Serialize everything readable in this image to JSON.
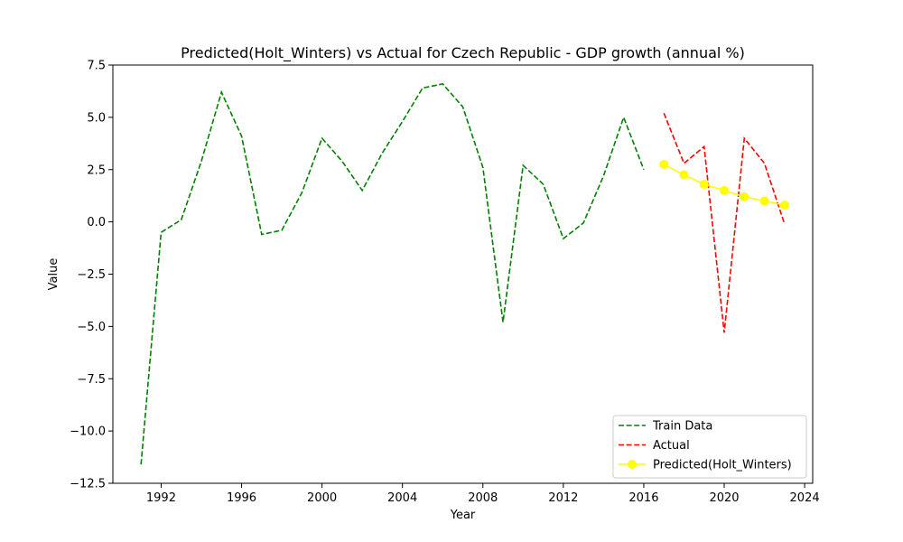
{
  "chart_data": {
    "type": "line",
    "title": "Predicted(Holt_Winters) vs Actual for Czech Republic - GDP growth (annual %)",
    "xlabel": "Year",
    "ylabel": "Value",
    "xlim": [
      1989.6,
      2024.4
    ],
    "ylim": [
      -12.5,
      7.5
    ],
    "x_ticks": [
      1992,
      1996,
      2000,
      2004,
      2008,
      2012,
      2016,
      2020,
      2024
    ],
    "y_ticks": [
      7.5,
      5.0,
      2.5,
      0.0,
      -2.5,
      -5.0,
      -7.5,
      -10.0,
      -12.5
    ],
    "y_tick_labels": [
      "7.5",
      "5.0",
      "2.5",
      "0.0",
      "−2.5",
      "−5.0",
      "−7.5",
      "−10.0",
      "−12.5"
    ],
    "grid": false,
    "legend_position": "bottom-right",
    "series": [
      {
        "name": "Train Data",
        "color": "#008000",
        "style": "dashed",
        "marker": "none",
        "x": [
          1991,
          1992,
          1993,
          1994,
          1995,
          1996,
          1997,
          1998,
          1999,
          2000,
          2001,
          2002,
          2003,
          2004,
          2005,
          2006,
          2007,
          2008,
          2009,
          2010,
          2011,
          2012,
          2013,
          2014,
          2015,
          2016
        ],
        "y": [
          -11.6,
          -0.5,
          0.1,
          2.9,
          6.2,
          4.1,
          -0.6,
          -0.4,
          1.4,
          4.0,
          2.9,
          1.5,
          3.3,
          4.8,
          6.4,
          6.6,
          5.5,
          2.6,
          -4.8,
          2.7,
          1.8,
          -0.8,
          -0.05,
          2.2,
          5.0,
          2.5
        ]
      },
      {
        "name": "Actual",
        "color": "#ff0000",
        "style": "dashed",
        "marker": "none",
        "x": [
          2017,
          2018,
          2019,
          2020,
          2021,
          2022,
          2023
        ],
        "y": [
          5.2,
          2.8,
          3.6,
          -5.3,
          4.0,
          2.8,
          -0.1
        ]
      },
      {
        "name": "Predicted(Holt_Winters)",
        "color": "#ffff00",
        "style": "solid",
        "marker": "circle",
        "x": [
          2017,
          2018,
          2019,
          2020,
          2021,
          2022,
          2023
        ],
        "y": [
          2.75,
          2.25,
          1.8,
          1.5,
          1.2,
          1.0,
          0.8
        ]
      }
    ]
  }
}
